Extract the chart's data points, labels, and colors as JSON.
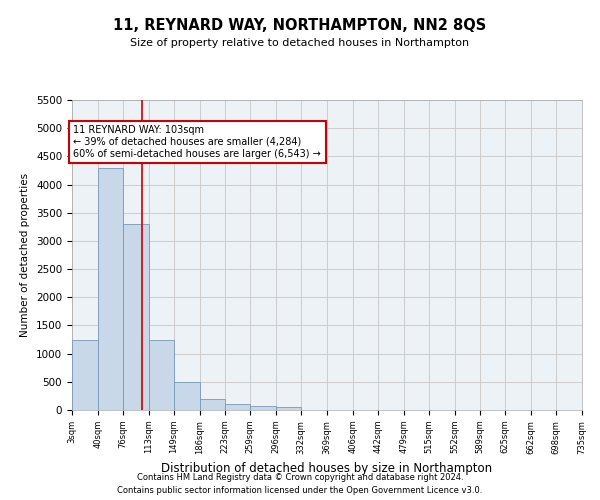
{
  "title": "11, REYNARD WAY, NORTHAMPTON, NN2 8QS",
  "subtitle": "Size of property relative to detached houses in Northampton",
  "xlabel": "Distribution of detached houses by size in Northampton",
  "ylabel": "Number of detached properties",
  "footer_line1": "Contains HM Land Registry data © Crown copyright and database right 2024.",
  "footer_line2": "Contains public sector information licensed under the Open Government Licence v3.0.",
  "annotation_line1": "11 REYNARD WAY: 103sqm",
  "annotation_line2": "← 39% of detached houses are smaller (4,284)",
  "annotation_line3": "60% of semi-detached houses are larger (6,543) →",
  "property_size": 103,
  "bar_color": "#c8d8e8",
  "bar_edge_color": "#7799bb",
  "red_line_color": "#cc0000",
  "annotation_box_color": "#ffffff",
  "annotation_box_edge_color": "#cc0000",
  "grid_color": "#cccccc",
  "bins": [
    3,
    40,
    76,
    113,
    149,
    186,
    223,
    259,
    296,
    332,
    369,
    406,
    442,
    479,
    515,
    552,
    589,
    625,
    662,
    698,
    735
  ],
  "bin_labels": [
    "3sqm",
    "40sqm",
    "76sqm",
    "113sqm",
    "149sqm",
    "186sqm",
    "223sqm",
    "259sqm",
    "296sqm",
    "332sqm",
    "369sqm",
    "406sqm",
    "442sqm",
    "479sqm",
    "515sqm",
    "552sqm",
    "589sqm",
    "625sqm",
    "662sqm",
    "698sqm",
    "735sqm"
  ],
  "values": [
    1250,
    4300,
    3300,
    1250,
    500,
    200,
    100,
    75,
    50,
    0,
    0,
    0,
    0,
    0,
    0,
    0,
    0,
    0,
    0,
    0
  ],
  "ylim": [
    0,
    5500
  ],
  "yticks": [
    0,
    500,
    1000,
    1500,
    2000,
    2500,
    3000,
    3500,
    4000,
    4500,
    5000,
    5500
  ],
  "background_color": "#ffffff",
  "plot_bg_color": "#edf2f7"
}
